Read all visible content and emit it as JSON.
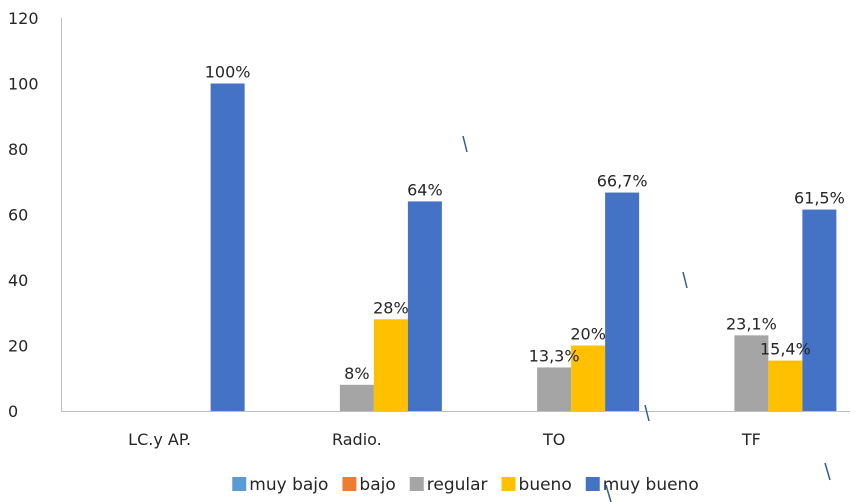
{
  "chart_data": {
    "type": "bar",
    "title": "",
    "xlabel": "",
    "ylabel": "",
    "ylim": [
      0,
      120
    ],
    "yticks": [
      0,
      20,
      40,
      60,
      80,
      100,
      120
    ],
    "grid": false,
    "legend_position": "bottom",
    "categories": [
      "LC.y AP.",
      "Radio.",
      "TO",
      "TF"
    ],
    "series": [
      {
        "name": "muy bajo",
        "color": "#5b9bd5",
        "values": [
          0,
          0,
          0,
          0
        ],
        "labels": [
          "",
          "",
          "",
          ""
        ]
      },
      {
        "name": "bajo",
        "color": "#ed7d31",
        "values": [
          0,
          0,
          0,
          0
        ],
        "labels": [
          "",
          "",
          "",
          ""
        ]
      },
      {
        "name": "regular",
        "color": "#a5a5a5",
        "values": [
          0,
          8,
          13.3,
          23.1
        ],
        "labels": [
          "",
          "8%",
          "13,3%",
          "23,1%"
        ]
      },
      {
        "name": "bueno",
        "color": "#ffc000",
        "values": [
          0,
          28,
          20,
          15.4
        ],
        "labels": [
          "",
          "28%",
          "20%",
          "15,4%"
        ]
      },
      {
        "name": "muy bueno",
        "color": "#4472c4",
        "values": [
          100,
          64,
          66.7,
          61.5
        ],
        "labels": [
          "100%",
          "64%",
          "66,7%",
          "61,5%"
        ]
      }
    ]
  }
}
